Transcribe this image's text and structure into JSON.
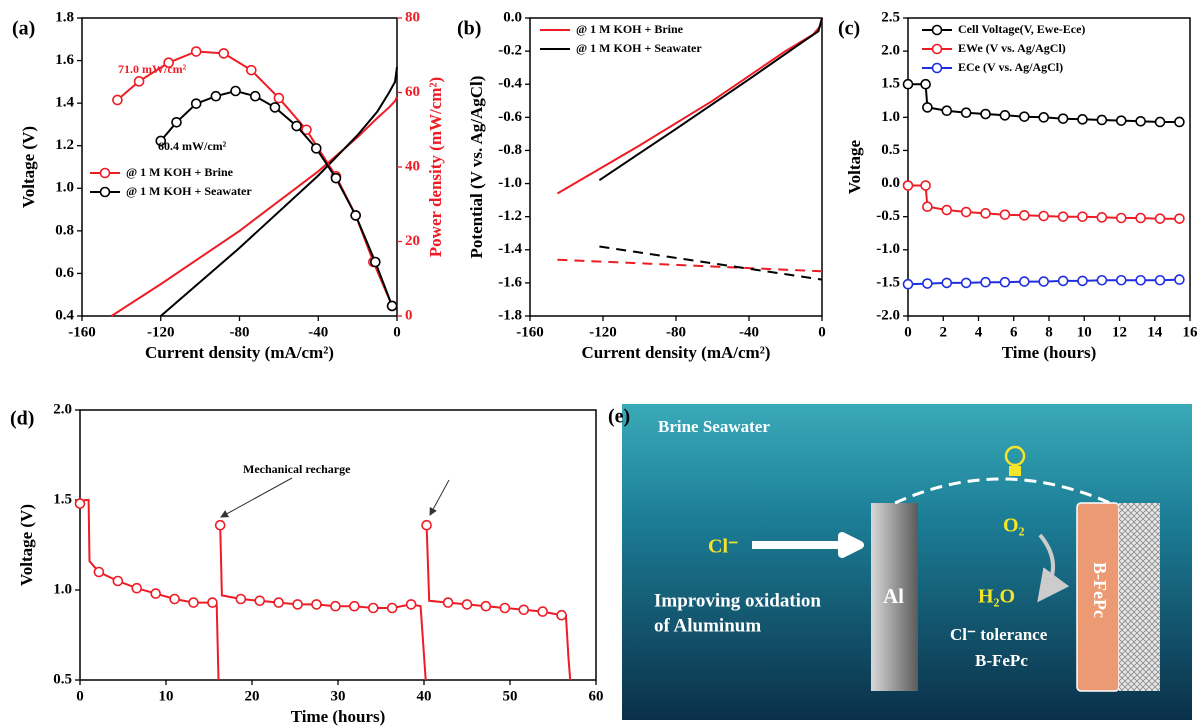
{
  "chart_data": [
    {
      "type": "line",
      "label": "(a)",
      "xlabel": "Current density (mA/cm²)",
      "ylabel": "Voltage (V)",
      "y2label": "Power density (mW/cm²)",
      "y2color": "#ee1c25",
      "xlim": [
        -160,
        0
      ],
      "xticks": [
        -160,
        -120,
        -80,
        -40,
        0
      ],
      "ylim": [
        0.4,
        1.8
      ],
      "yticks": [
        0.4,
        0.6,
        0.8,
        {
          "value": 1,
          "label": "1.0"
        },
        1.2,
        1.4,
        1.6,
        1.8
      ],
      "y2lim": [
        0,
        80
      ],
      "y2ticks": [
        0,
        20,
        40,
        60,
        80
      ],
      "legend": "center left",
      "annotations": [
        {
          "text": "71.0 mW/cm²",
          "color": "#ee1c25"
        },
        {
          "text": "60.4 mW/cm²",
          "color": "#000000"
        }
      ],
      "series": [
        {
          "color": "#ee1c25",
          "x": [
            -145,
            -120,
            -80,
            -40,
            -20,
            -10,
            -4,
            -1,
            0
          ],
          "values": [
            0.4,
            0.55,
            0.8,
            1.08,
            1.24,
            1.33,
            1.38,
            1.41,
            1.43
          ]
        },
        {
          "color": "#000000",
          "x": [
            -120,
            -80,
            -40,
            -20,
            -10,
            -4,
            -1,
            0
          ],
          "values": [
            0.4,
            0.72,
            1.06,
            1.25,
            1.36,
            1.45,
            1.5,
            1.57
          ]
        },
        {
          "name": "@ 1 M KOH + Brine",
          "color": "#ee1c25",
          "axis": "y2",
          "marker": "circle",
          "x": [
            -142,
            -131,
            -116,
            -102,
            -88,
            -74,
            -60,
            -46,
            -31,
            -21,
            -12,
            -2.5
          ],
          "values": [
            58,
            63,
            68,
            71,
            70.5,
            66,
            58.5,
            50,
            37.5,
            27,
            14.5,
            2.7
          ]
        },
        {
          "name": "@ 1 M KOH + Seawater",
          "color": "#000000",
          "axis": "y2",
          "marker": "circle",
          "x": [
            -120,
            -112,
            -102,
            -92,
            -82,
            -72,
            -62,
            -51,
            -41,
            -31,
            -21,
            -11,
            -2.5
          ],
          "values": [
            47,
            52,
            57,
            59,
            60.4,
            59,
            56,
            51,
            45,
            37,
            27,
            14.5,
            2.7
          ]
        }
      ]
    },
    {
      "type": "line",
      "label": "(b)",
      "xlabel": "Current density (mA/cm²)",
      "ylabel": "Potential (V vs. Ag/AgCl)",
      "xlim": [
        -160,
        0
      ],
      "xticks": [
        -160,
        -120,
        -80,
        -40,
        0
      ],
      "ylim": [
        -1.8,
        0
      ],
      "yticks": [
        {
          "value": 0,
          "label": "0.0"
        },
        -0.2,
        -0.4,
        -0.6,
        -0.8,
        {
          "value": -1,
          "label": "-1.0"
        },
        -1.2,
        -1.4,
        -1.6,
        -1.8
      ],
      "legend": "upper left",
      "series": [
        {
          "name": "@ 1 M KOH + Brine",
          "color": "#ee1c25",
          "x": [
            -145,
            -100,
            -60,
            -20,
            -5,
            -1,
            0
          ],
          "values": [
            -1.06,
            -0.77,
            -0.5,
            -0.2,
            -0.1,
            -0.05,
            0
          ]
        },
        {
          "name": "@ 1 M KOH + Seawater",
          "color": "#000000",
          "x": [
            -122,
            -80,
            -40,
            -10,
            -2,
            0
          ],
          "values": [
            -0.98,
            -0.67,
            -0.37,
            -0.14,
            -0.08,
            0
          ]
        },
        {
          "color": "#ee1c25",
          "dash": true,
          "x": [
            -145,
            0
          ],
          "values": [
            -1.46,
            -1.53
          ]
        },
        {
          "color": "#000000",
          "dash": true,
          "x": [
            -122,
            0
          ],
          "values": [
            -1.38,
            -1.58
          ]
        }
      ]
    },
    {
      "type": "line",
      "label": "(c)",
      "xlabel": "Time (hours)",
      "ylabel": "Voltage",
      "xlim": [
        0,
        16
      ],
      "xticks": [
        0,
        2,
        4,
        6,
        8,
        10,
        12,
        14,
        16
      ],
      "ylim": [
        -2,
        2.5
      ],
      "yticks": [
        {
          "value": -2,
          "label": "-2.0"
        },
        -1.5,
        {
          "value": -1,
          "label": "-1.0"
        },
        -0.5,
        {
          "value": 0,
          "label": "0.0"
        },
        0.5,
        {
          "value": 1,
          "label": "1.0"
        },
        1.5,
        {
          "value": 2,
          "label": "2.0"
        },
        2.5
      ],
      "legend": "upper right",
      "series": [
        {
          "name": "Cell Voltage(V, Ewe-Ece)",
          "color": "#000000",
          "marker": "circle",
          "x": [
            0,
            1,
            1.1,
            2.2,
            3.3,
            4.4,
            5.5,
            6.6,
            7.7,
            8.8,
            9.9,
            11,
            12.1,
            13.2,
            14.3,
            15.4
          ],
          "values": [
            1.5,
            1.5,
            1.15,
            1.1,
            1.07,
            1.05,
            1.03,
            1.01,
            1.0,
            0.98,
            0.97,
            0.96,
            0.95,
            0.94,
            0.93,
            0.93
          ]
        },
        {
          "name": "EWe (V vs. Ag/AgCl)",
          "color": "#ee1c25",
          "marker": "circle",
          "x": [
            0,
            1,
            1.1,
            2.2,
            3.3,
            4.4,
            5.5,
            6.6,
            7.7,
            8.8,
            9.9,
            11,
            12.1,
            13.2,
            14.3,
            15.4
          ],
          "values": [
            -0.03,
            -0.03,
            -0.35,
            -0.4,
            -0.43,
            -0.45,
            -0.47,
            -0.48,
            -0.49,
            -0.5,
            -0.5,
            -0.51,
            -0.52,
            -0.52,
            -0.53,
            -0.53
          ]
        },
        {
          "name": "ECe (V vs. Ag/AgCl)",
          "color": "#1f2fe0",
          "marker": "circle",
          "x": [
            0,
            1.1,
            2.2,
            3.3,
            4.4,
            5.5,
            6.6,
            7.7,
            8.8,
            9.9,
            11,
            12.1,
            13.2,
            14.3,
            15.4
          ],
          "values": [
            -1.52,
            -1.51,
            -1.5,
            -1.5,
            -1.49,
            -1.49,
            -1.48,
            -1.48,
            -1.47,
            -1.47,
            -1.46,
            -1.46,
            -1.46,
            -1.46,
            -1.45
          ]
        }
      ]
    },
    {
      "type": "line",
      "label": "(d)",
      "xlabel": "Time (hours)",
      "ylabel": "Voltage (V)",
      "xlim": [
        0,
        60
      ],
      "xticks": [
        0,
        10,
        20,
        30,
        40,
        50,
        60
      ],
      "ylim": [
        0.5,
        2
      ],
      "yticks": [
        0.5,
        {
          "value": 1,
          "label": "1.0"
        },
        1.5,
        {
          "value": 2,
          "label": "2.0"
        }
      ],
      "annotations": [
        {
          "text": "Mechanical recharge",
          "color": "#000000"
        }
      ],
      "series": [
        {
          "color": "#ee1c25",
          "x": [
            0,
            0.6,
            1.0,
            1.1,
            2.2,
            4.4,
            6.6,
            8.8,
            11.0,
            13.2,
            15.4,
            15.9,
            16.1,
            null,
            16.3,
            16.5,
            18.7,
            20.9,
            23.1,
            25.3,
            27.5,
            29.7,
            31.9,
            34.1,
            36.3,
            38.5,
            39.6,
            40.2,
            null,
            40.3,
            40.6,
            42.8,
            45.0,
            47.2,
            49.4,
            51.6,
            53.8,
            56.0,
            56.5,
            56.8,
            57.0
          ],
          "values": [
            1.48,
            1.5,
            1.5,
            1.16,
            1.1,
            1.05,
            1.01,
            0.98,
            0.95,
            0.93,
            0.93,
            0.92,
            0.5,
            null,
            1.36,
            0.97,
            0.95,
            0.94,
            0.93,
            0.92,
            0.92,
            0.91,
            0.91,
            0.9,
            0.9,
            0.92,
            0.91,
            0.5,
            null,
            1.36,
            0.94,
            0.93,
            0.92,
            0.91,
            0.9,
            0.89,
            0.88,
            0.86,
            0.86,
            0.62,
            0.5
          ]
        },
        {
          "color": "#ee1c25",
          "marker": "circle",
          "line": false,
          "x": [
            0,
            2.2,
            4.4,
            6.6,
            8.8,
            11.0,
            13.2,
            15.4,
            16.3,
            18.7,
            20.9,
            23.1,
            25.3,
            27.5,
            29.7,
            31.9,
            34.1,
            36.3,
            38.5,
            40.3,
            42.8,
            45.0,
            47.2,
            49.4,
            51.6,
            53.8,
            56.0
          ],
          "values": [
            1.48,
            1.1,
            1.05,
            1.01,
            0.98,
            0.95,
            0.93,
            0.93,
            1.36,
            0.95,
            0.94,
            0.93,
            0.92,
            0.92,
            0.91,
            0.91,
            0.9,
            0.9,
            0.92,
            1.36,
            0.93,
            0.92,
            0.91,
            0.9,
            0.89,
            0.88,
            0.86
          ]
        }
      ]
    }
  ],
  "diagram": {
    "label": "(e)",
    "title": "Brine Seawater",
    "ion": "Cl⁻",
    "text1": "Improving oxidation",
    "text2": "of Aluminum",
    "anode": "Al",
    "reactant": "O₂",
    "product": "H₂O",
    "text3": "Cl⁻ tolerance",
    "text4": "B-FePc",
    "cathode": "B-FePc"
  }
}
